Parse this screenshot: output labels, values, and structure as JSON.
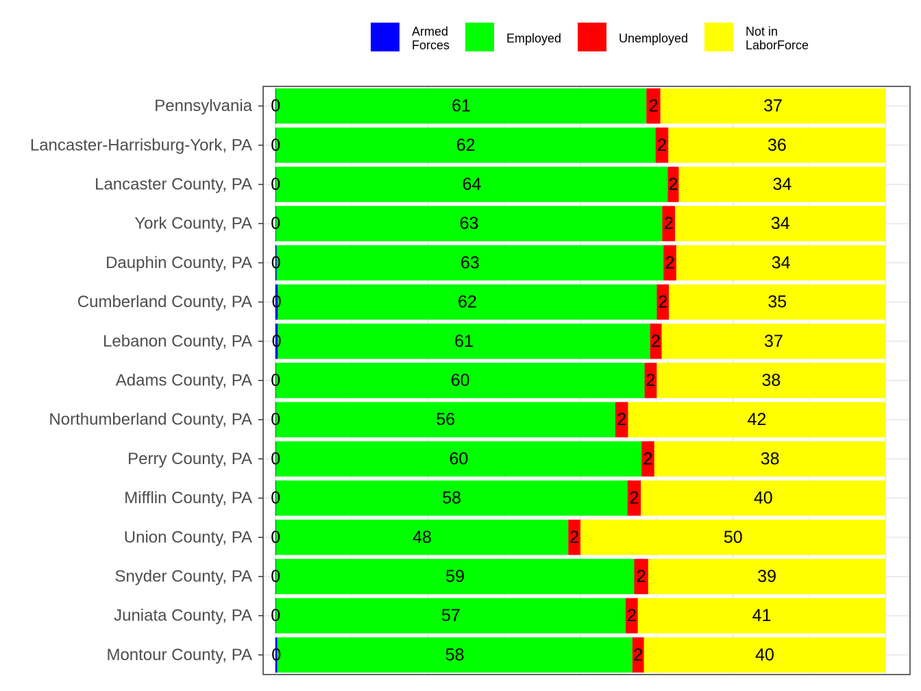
{
  "chart_data": {
    "type": "bar",
    "orientation": "horizontal",
    "stacked": true,
    "categories": [
      "Pennsylvania",
      "Lancaster-Harrisburg-York, PA",
      "Lancaster County, PA",
      "York County, PA",
      "Dauphin County, PA",
      "Cumberland County, PA",
      "Lebanon County, PA",
      "Adams County, PA",
      "Northumberland County, PA",
      "Perry County, PA",
      "Mifflin County, PA",
      "Union County, PA",
      "Snyder County, PA",
      "Juniata County, PA",
      "Montour County, PA"
    ],
    "series": [
      {
        "name": "Armed Forces",
        "legend_lines": [
          "Armed",
          "Forces"
        ],
        "color": "#0000ff",
        "values": [
          0.1,
          0.1,
          0.1,
          0.1,
          0.2,
          0.4,
          0.4,
          0.1,
          0.1,
          0.1,
          0.1,
          0.1,
          0.1,
          0.1,
          0.3
        ],
        "labels": [
          "0",
          "0",
          "0",
          "0",
          "0",
          "0",
          "0",
          "0",
          "0",
          "0",
          "0",
          "0",
          "0",
          "0",
          "0"
        ]
      },
      {
        "name": "Employed",
        "legend_lines": [
          "Employed"
        ],
        "color": "#00ff00",
        "values": [
          60.7,
          62.2,
          64.2,
          63.3,
          63.4,
          62.1,
          61.0,
          60.4,
          55.6,
          59.9,
          57.6,
          47.9,
          58.7,
          57.3,
          58.2
        ],
        "labels": [
          "61",
          "62",
          "64",
          "63",
          "63",
          "62",
          "61",
          "60",
          "56",
          "60",
          "58",
          "48",
          "59",
          "57",
          "58"
        ]
      },
      {
        "name": "Unemployed",
        "legend_lines": [
          "Unemployed"
        ],
        "color": "#ff0000",
        "values": [
          2.3,
          2.1,
          1.8,
          2.1,
          2.1,
          2.0,
          1.9,
          2.0,
          2.1,
          2.1,
          2.2,
          2.0,
          2.3,
          2.0,
          1.9
        ],
        "labels": [
          "2",
          "2",
          "2",
          "2",
          "2",
          "2",
          "2",
          "2",
          "2",
          "2",
          "2",
          "2",
          "2",
          "2",
          "2"
        ]
      },
      {
        "name": "Not in LaborForce",
        "legend_lines": [
          "Not in",
          "LaborForce"
        ],
        "color": "#ffff00",
        "values": [
          36.9,
          35.6,
          33.9,
          34.5,
          34.3,
          35.5,
          36.7,
          37.5,
          42.2,
          37.9,
          40.1,
          50.0,
          38.9,
          40.6,
          39.6
        ],
        "labels": [
          "37",
          "36",
          "34",
          "34",
          "34",
          "35",
          "37",
          "38",
          "42",
          "38",
          "40",
          "50",
          "39",
          "41",
          "40"
        ]
      }
    ],
    "xlim": [
      -2,
      104
    ],
    "grid": true,
    "legend_position": "top",
    "title": "",
    "xlabel": "",
    "ylabel": ""
  }
}
